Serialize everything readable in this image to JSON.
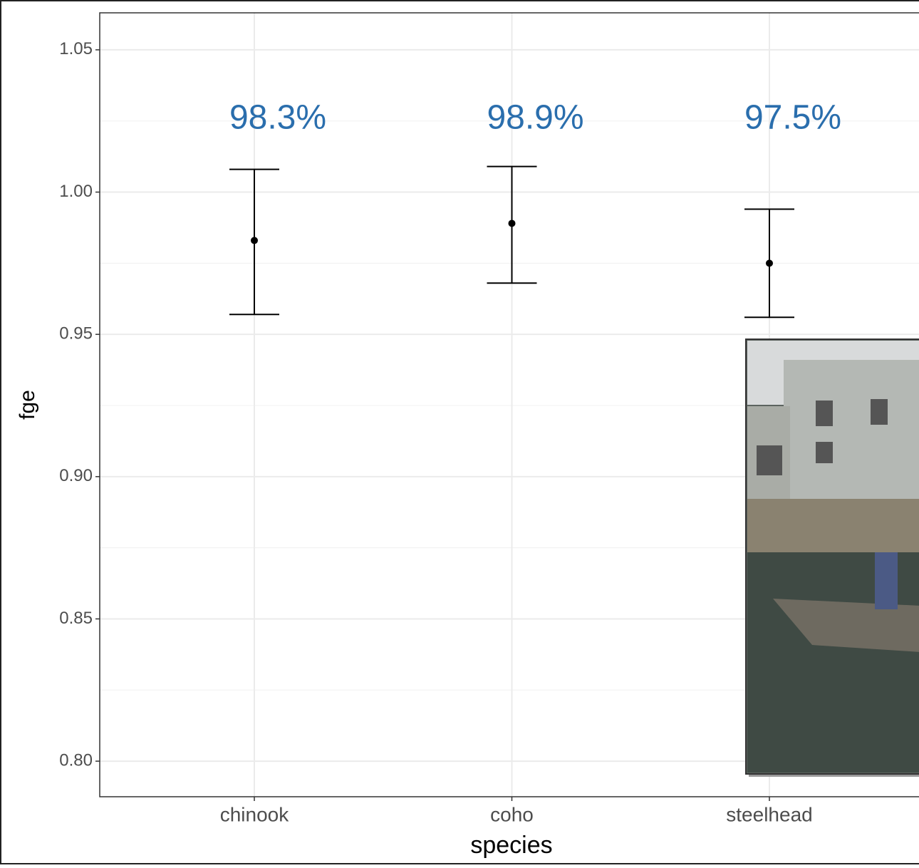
{
  "chart_data": {
    "type": "errorbar",
    "x_label": "species",
    "y_label": "fge",
    "categories": [
      "chinook",
      "coho",
      "steelhead"
    ],
    "values": [
      0.983,
      0.989,
      0.975
    ],
    "value_labels": [
      "98.3%",
      "98.9%",
      "97.5%"
    ],
    "lower": [
      0.957,
      0.968,
      0.956
    ],
    "upper": [
      1.008,
      1.009,
      0.994
    ],
    "ylim": [
      0.7875,
      1.063
    ],
    "yticks": [
      {
        "value": 0.8,
        "label": "0.80"
      },
      0.85,
      {
        "value": 0.9,
        "label": "0.90"
      },
      0.95,
      {
        "value": 1,
        "label": "1.00"
      },
      1.05
    ],
    "grid": true,
    "minor_grid": true,
    "color": "#000000",
    "label_color": "#2a6ead"
  }
}
